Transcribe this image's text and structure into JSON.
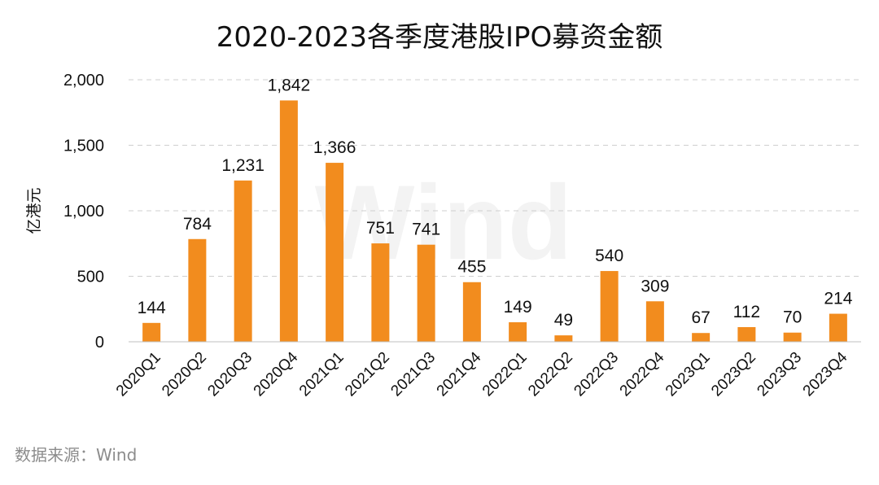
{
  "chart_data": {
    "type": "bar",
    "title": "2020-2023各季度港股IPO募资金额",
    "ylabel": "亿港元",
    "xlabel": "",
    "ylim": [
      0,
      2000
    ],
    "yticks": [
      0,
      500,
      1000,
      1500,
      2000
    ],
    "ytick_labels": [
      "0",
      "500",
      "1,000",
      "1,500",
      "2,000"
    ],
    "grid": true,
    "bar_color": "#f28c1e",
    "categories": [
      "2020Q1",
      "2020Q2",
      "2020Q3",
      "2020Q4",
      "2021Q1",
      "2021Q2",
      "2021Q3",
      "2021Q4",
      "2022Q1",
      "2022Q2",
      "2022Q3",
      "2022Q4",
      "2023Q1",
      "2023Q2",
      "2023Q3",
      "2023Q4"
    ],
    "values": [
      144,
      784,
      1231,
      1842,
      1366,
      751,
      741,
      455,
      149,
      49,
      540,
      309,
      67,
      112,
      70,
      214
    ],
    "data_labels": [
      "144",
      "784",
      "1,231",
      "1,842",
      "1,366",
      "751",
      "741",
      "455",
      "149",
      "49",
      "540",
      "309",
      "67",
      "112",
      "70",
      "214"
    ]
  },
  "source_note": "数据来源：Wind",
  "watermark": "Wind"
}
